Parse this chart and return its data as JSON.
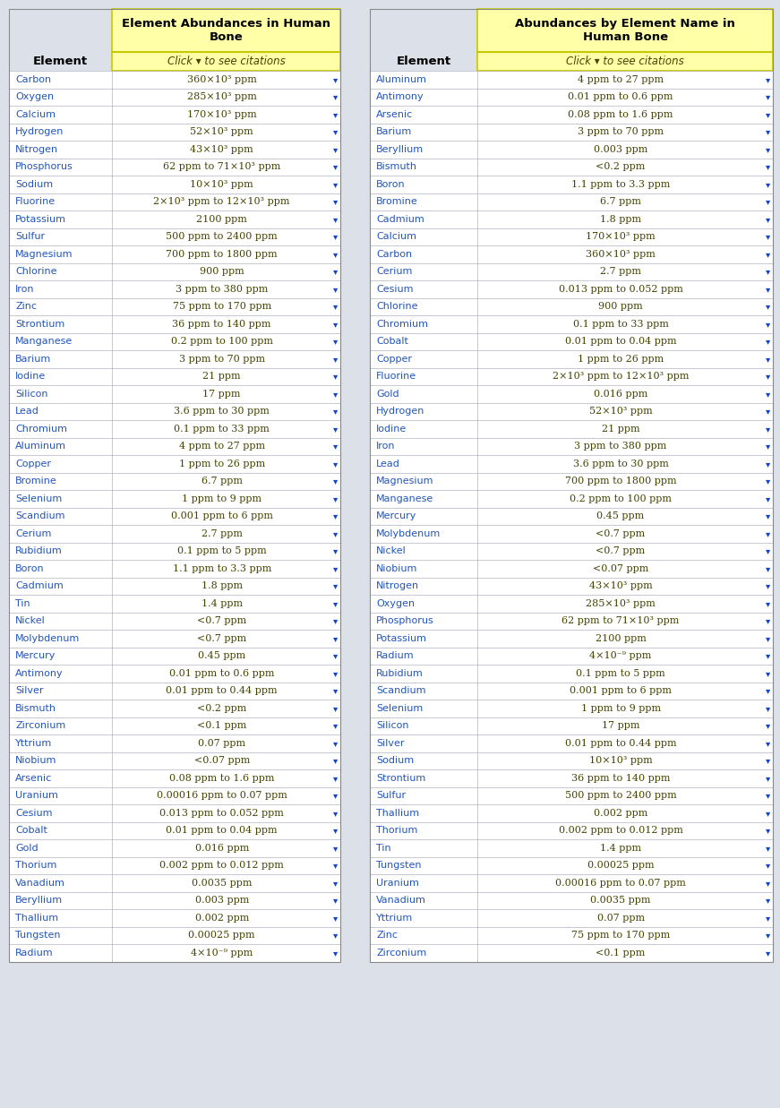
{
  "left_table": {
    "title": "Element Abundances in Human\nBone",
    "subtitle_text": "Click",
    "subtitle_arrow": "▾",
    "subtitle_rest": " to see citations",
    "col1_header": "Element",
    "rows": [
      [
        "Carbon",
        "360×10³ ppm"
      ],
      [
        "Oxygen",
        "285×10³ ppm"
      ],
      [
        "Calcium",
        "170×10³ ppm"
      ],
      [
        "Hydrogen",
        "52×10³ ppm"
      ],
      [
        "Nitrogen",
        "43×10³ ppm"
      ],
      [
        "Phosphorus",
        "62 ppm to 71×10³ ppm"
      ],
      [
        "Sodium",
        "10×10³ ppm"
      ],
      [
        "Fluorine",
        "2×10³ ppm to 12×10³ ppm"
      ],
      [
        "Potassium",
        "2100 ppm"
      ],
      [
        "Sulfur",
        "500 ppm to 2400 ppm"
      ],
      [
        "Magnesium",
        "700 ppm to 1800 ppm"
      ],
      [
        "Chlorine",
        "900 ppm"
      ],
      [
        "Iron",
        "3 ppm to 380 ppm"
      ],
      [
        "Zinc",
        "75 ppm to 170 ppm"
      ],
      [
        "Strontium",
        "36 ppm to 140 ppm"
      ],
      [
        "Manganese",
        "0.2 ppm to 100 ppm"
      ],
      [
        "Barium",
        "3 ppm to 70 ppm"
      ],
      [
        "Iodine",
        "21 ppm"
      ],
      [
        "Silicon",
        "17 ppm"
      ],
      [
        "Lead",
        "3.6 ppm to 30 ppm"
      ],
      [
        "Chromium",
        "0.1 ppm to 33 ppm"
      ],
      [
        "Aluminum",
        "4 ppm to 27 ppm"
      ],
      [
        "Copper",
        "1 ppm to 26 ppm"
      ],
      [
        "Bromine",
        "6.7 ppm"
      ],
      [
        "Selenium",
        "1 ppm to 9 ppm"
      ],
      [
        "Scandium",
        "0.001 ppm to 6 ppm"
      ],
      [
        "Cerium",
        "2.7 ppm"
      ],
      [
        "Rubidium",
        "0.1 ppm to 5 ppm"
      ],
      [
        "Boron",
        "1.1 ppm to 3.3 ppm"
      ],
      [
        "Cadmium",
        "1.8 ppm"
      ],
      [
        "Tin",
        "1.4 ppm"
      ],
      [
        "Nickel",
        "<0.7 ppm"
      ],
      [
        "Molybdenum",
        "<0.7 ppm"
      ],
      [
        "Mercury",
        "0.45 ppm"
      ],
      [
        "Antimony",
        "0.01 ppm to 0.6 ppm"
      ],
      [
        "Silver",
        "0.01 ppm to 0.44 ppm"
      ],
      [
        "Bismuth",
        "<0.2 ppm"
      ],
      [
        "Zirconium",
        "<0.1 ppm"
      ],
      [
        "Yttrium",
        "0.07 ppm"
      ],
      [
        "Niobium",
        "<0.07 ppm"
      ],
      [
        "Arsenic",
        "0.08 ppm to 1.6 ppm"
      ],
      [
        "Uranium",
        "0.00016 ppm to 0.07 ppm"
      ],
      [
        "Cesium",
        "0.013 ppm to 0.052 ppm"
      ],
      [
        "Cobalt",
        "0.01 ppm to 0.04 ppm"
      ],
      [
        "Gold",
        "0.016 ppm"
      ],
      [
        "Thorium",
        "0.002 ppm to 0.012 ppm"
      ],
      [
        "Vanadium",
        "0.0035 ppm"
      ],
      [
        "Beryllium",
        "0.003 ppm"
      ],
      [
        "Thallium",
        "0.002 ppm"
      ],
      [
        "Tungsten",
        "0.00025 ppm"
      ],
      [
        "Radium",
        "4×10⁻⁹ ppm"
      ]
    ]
  },
  "right_table": {
    "title": "Abundances by Element Name in\nHuman Bone",
    "subtitle_text": "Click",
    "subtitle_arrow": "▾",
    "subtitle_rest": " to see citations",
    "col1_header": "Element",
    "rows": [
      [
        "Aluminum",
        "4 ppm to 27 ppm"
      ],
      [
        "Antimony",
        "0.01 ppm to 0.6 ppm"
      ],
      [
        "Arsenic",
        "0.08 ppm to 1.6 ppm"
      ],
      [
        "Barium",
        "3 ppm to 70 ppm"
      ],
      [
        "Beryllium",
        "0.003 ppm"
      ],
      [
        "Bismuth",
        "<0.2 ppm"
      ],
      [
        "Boron",
        "1.1 ppm to 3.3 ppm"
      ],
      [
        "Bromine",
        "6.7 ppm"
      ],
      [
        "Cadmium",
        "1.8 ppm"
      ],
      [
        "Calcium",
        "170×10³ ppm"
      ],
      [
        "Carbon",
        "360×10³ ppm"
      ],
      [
        "Cerium",
        "2.7 ppm"
      ],
      [
        "Cesium",
        "0.013 ppm to 0.052 ppm"
      ],
      [
        "Chlorine",
        "900 ppm"
      ],
      [
        "Chromium",
        "0.1 ppm to 33 ppm"
      ],
      [
        "Cobalt",
        "0.01 ppm to 0.04 ppm"
      ],
      [
        "Copper",
        "1 ppm to 26 ppm"
      ],
      [
        "Fluorine",
        "2×10³ ppm to 12×10³ ppm"
      ],
      [
        "Gold",
        "0.016 ppm"
      ],
      [
        "Hydrogen",
        "52×10³ ppm"
      ],
      [
        "Iodine",
        "21 ppm"
      ],
      [
        "Iron",
        "3 ppm to 380 ppm"
      ],
      [
        "Lead",
        "3.6 ppm to 30 ppm"
      ],
      [
        "Magnesium",
        "700 ppm to 1800 ppm"
      ],
      [
        "Manganese",
        "0.2 ppm to 100 ppm"
      ],
      [
        "Mercury",
        "0.45 ppm"
      ],
      [
        "Molybdenum",
        "<0.7 ppm"
      ],
      [
        "Nickel",
        "<0.7 ppm"
      ],
      [
        "Niobium",
        "<0.07 ppm"
      ],
      [
        "Nitrogen",
        "43×10³ ppm"
      ],
      [
        "Oxygen",
        "285×10³ ppm"
      ],
      [
        "Phosphorus",
        "62 ppm to 71×10³ ppm"
      ],
      [
        "Potassium",
        "2100 ppm"
      ],
      [
        "Radium",
        "4×10⁻⁹ ppm"
      ],
      [
        "Rubidium",
        "0.1 ppm to 5 ppm"
      ],
      [
        "Scandium",
        "0.001 ppm to 6 ppm"
      ],
      [
        "Selenium",
        "1 ppm to 9 ppm"
      ],
      [
        "Silicon",
        "17 ppm"
      ],
      [
        "Silver",
        "0.01 ppm to 0.44 ppm"
      ],
      [
        "Sodium",
        "10×10³ ppm"
      ],
      [
        "Strontium",
        "36 ppm to 140 ppm"
      ],
      [
        "Sulfur",
        "500 ppm to 2400 ppm"
      ],
      [
        "Thallium",
        "0.002 ppm"
      ],
      [
        "Thorium",
        "0.002 ppm to 0.012 ppm"
      ],
      [
        "Tin",
        "1.4 ppm"
      ],
      [
        "Tungsten",
        "0.00025 ppm"
      ],
      [
        "Uranium",
        "0.00016 ppm to 0.07 ppm"
      ],
      [
        "Vanadium",
        "0.0035 ppm"
      ],
      [
        "Yttrium",
        "0.07 ppm"
      ],
      [
        "Zinc",
        "75 ppm to 170 ppm"
      ],
      [
        "Zirconium",
        "<0.1 ppm"
      ]
    ]
  },
  "bg_color": "#dce0e8",
  "header_bg": "#ffffa8",
  "header_border": "#c8c800",
  "row_bg_white": "#ffffff",
  "row_bg_gray": "#e8eaf0",
  "element_color": "#2255bb",
  "value_color": "#444400",
  "arrow_color": "#1144cc",
  "header_text_color": "#000000",
  "subtitle_italic_color": "#444400",
  "col1_header_color": "#000000",
  "divider_color": "#b0b4c0",
  "table_border_color": "#888888"
}
